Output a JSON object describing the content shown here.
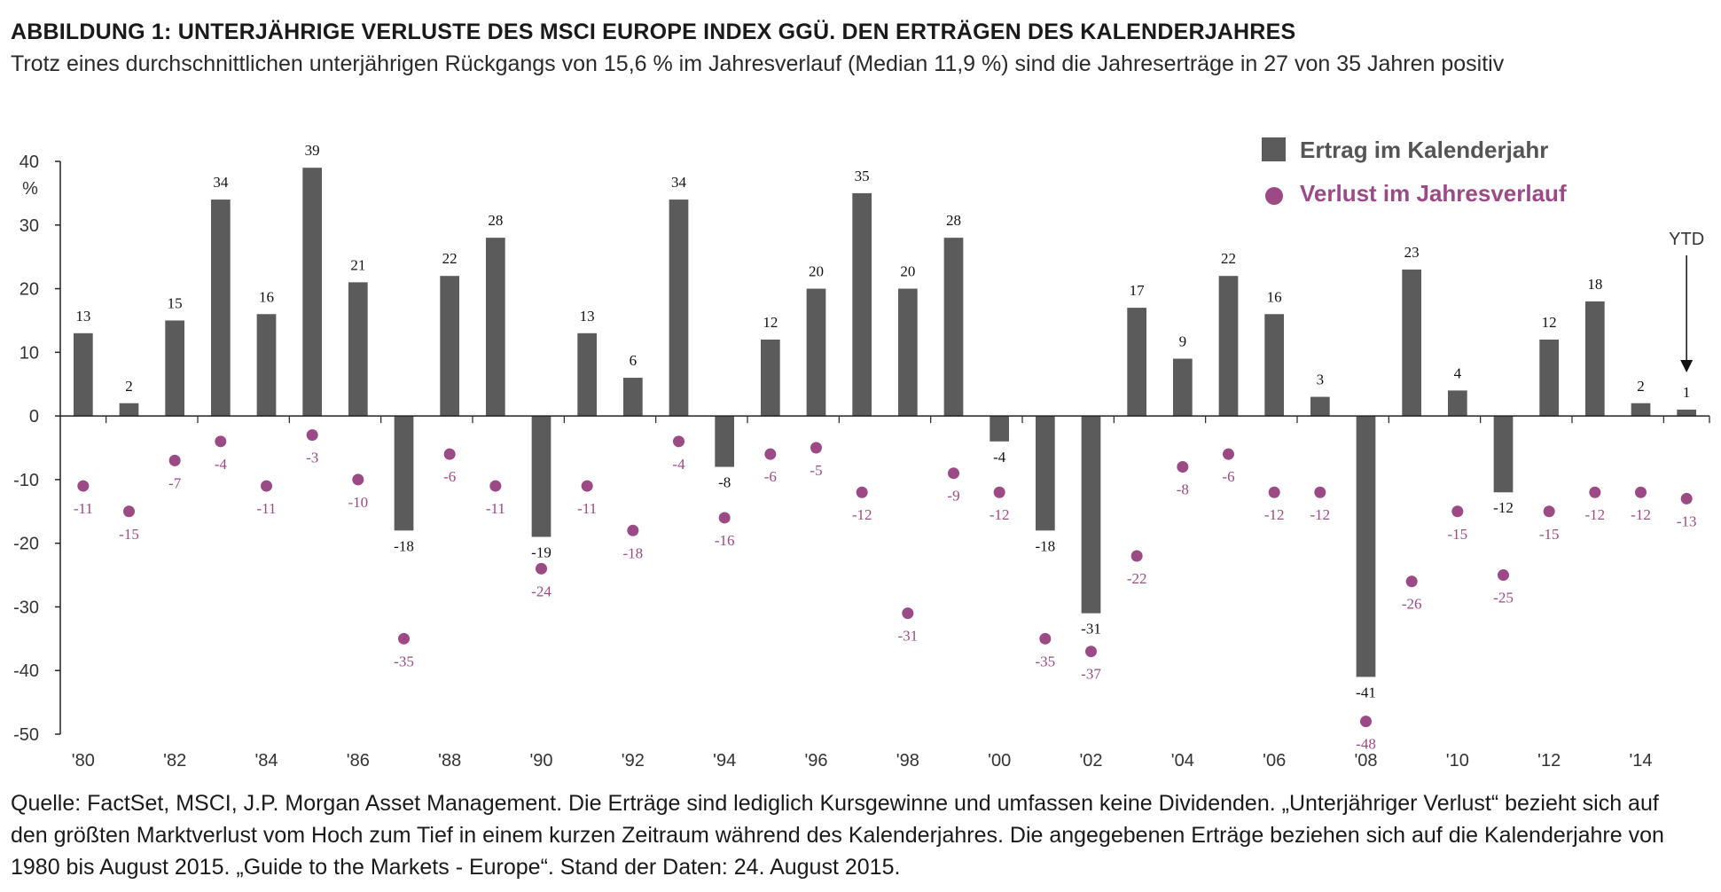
{
  "title": "ABBILDUNG 1: UNTERJÄHRIGE VERLUSTE DES MSCI EUROPE INDEX GGÜ. DEN ERTRÄGEN DES KALENDERJAHRES",
  "subtitle": "Trotz eines durchschnittlichen unterjährigen Rückgangs von 15,6 % im Jahresverlauf (Median 11,9 %) sind die Jahreserträge in 27 von 35 Jahren positiv",
  "source": "Quelle: FactSet, MSCI, J.P. Morgan Asset Management. Die Erträge sind lediglich Kursgewinne und umfassen keine Dividenden. „Unterjähriger Verlust“ bezieht sich auf den größten Marktverlust vom Hoch zum Tief in einem kurzen Zeitraum während des Kalenderjahres. Die angegebenen Erträge beziehen sich auf die Kalenderjahre von 1980 bis August 2015. „Guide to the Markets - Europe“. Stand der Daten: 24. August 2015.",
  "colors": {
    "bar": "#5b5b5b",
    "point": "#9b4a85",
    "point_label": "#9b4a85",
    "axis": "#222222"
  },
  "chart_data": {
    "type": "bar",
    "ylabel": "%",
    "ylim": [
      -50,
      40
    ],
    "yticks": [
      40,
      30,
      20,
      10,
      0,
      -10,
      -20,
      -30,
      -40,
      -50
    ],
    "x": [
      "1980",
      "1981",
      "1982",
      "1983",
      "1984",
      "1985",
      "1986",
      "1987",
      "1988",
      "1989",
      "1990",
      "1991",
      "1992",
      "1993",
      "1994",
      "1995",
      "1996",
      "1997",
      "1998",
      "1999",
      "2000",
      "2001",
      "2002",
      "2003",
      "2004",
      "2005",
      "2006",
      "2007",
      "2008",
      "2009",
      "2010",
      "2011",
      "2012",
      "2013",
      "2014",
      "2015"
    ],
    "xticks": [
      "'80",
      "'82",
      "'84",
      "'86",
      "'88",
      "'90",
      "'92",
      "'94",
      "'96",
      "'98",
      "'00",
      "'02",
      "'04",
      "'06",
      "'08",
      "'10",
      "'12",
      "'14"
    ],
    "xtick_years": [
      "1980",
      "1982",
      "1984",
      "1986",
      "1988",
      "1990",
      "1992",
      "1994",
      "1996",
      "1998",
      "2000",
      "2002",
      "2004",
      "2006",
      "2008",
      "2010",
      "2012",
      "2014"
    ],
    "legend_position": "top-right",
    "series": [
      {
        "name": "Ertrag im Kalenderjahr",
        "type": "bar",
        "values": [
          13,
          2,
          15,
          34,
          16,
          39,
          21,
          -18,
          22,
          28,
          -19,
          13,
          6,
          34,
          -8,
          12,
          20,
          35,
          20,
          28,
          -4,
          -18,
          -31,
          17,
          9,
          22,
          16,
          3,
          -41,
          23,
          4,
          -12,
          12,
          18,
          2,
          1
        ]
      },
      {
        "name": "Verlust im Jahresverlauf",
        "type": "scatter",
        "values": [
          -11,
          -15,
          -7,
          -4,
          -11,
          -3,
          -10,
          -35,
          -6,
          -11,
          -24,
          -11,
          -18,
          -4,
          -16,
          -6,
          -5,
          -12,
          -31,
          -9,
          -12,
          -35,
          -37,
          -22,
          -8,
          -6,
          -12,
          -12,
          -48,
          -26,
          -15,
          -25,
          -15,
          -12,
          -12,
          -13
        ]
      }
    ],
    "annotation": {
      "text": "YTD",
      "year": "2015"
    }
  }
}
